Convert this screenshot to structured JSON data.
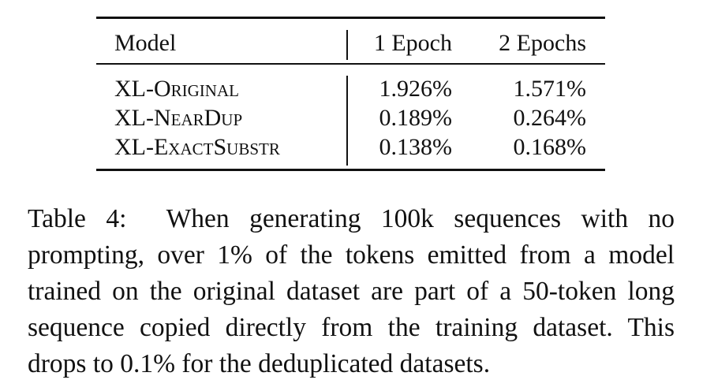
{
  "table": {
    "header": [
      "Model",
      "1 Epoch",
      "2 Epochs"
    ],
    "rows": [
      [
        "XL-Original",
        "1.926%",
        "1.571%"
      ],
      [
        "XL-NearDup",
        "0.189%",
        "0.264%"
      ],
      [
        "XL-ExactSubstr",
        "0.138%",
        "0.168%"
      ]
    ]
  },
  "caption": {
    "label": "Table 4:",
    "text": "When generating 100k sequences with no prompting, over 1% of the tokens emitted from a model trained on the original dataset are part of a 50-token long sequence copied directly from the training dataset. This drops to 0.1% for the deduplicated datasets."
  }
}
